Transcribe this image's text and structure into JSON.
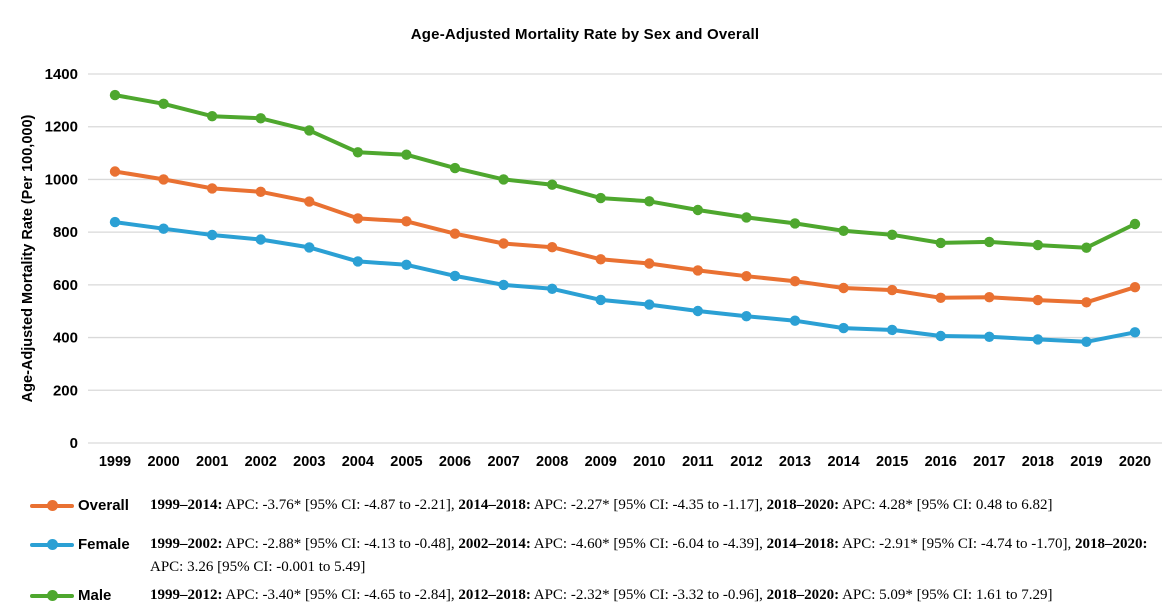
{
  "page": {
    "background": "#FFFFFF"
  },
  "chart_data": {
    "type": "line",
    "title": "Age-Adjusted Mortality Rate by Sex and Overall",
    "xlabel": "",
    "ylabel": "Age-Adjusted Mortality Rate (Per 100,000)",
    "ylim": [
      0,
      1400
    ],
    "yticks": [
      0,
      200,
      400,
      600,
      800,
      1000,
      1200,
      1400
    ],
    "grid": true,
    "gridline_color": "#D9D9D9",
    "legend_position": "bottom-left",
    "categories": [
      "1999",
      "2000",
      "2001",
      "2002",
      "2003",
      "2004",
      "2005",
      "2006",
      "2007",
      "2008",
      "2009",
      "2010",
      "2011",
      "2012",
      "2013",
      "2014",
      "2015",
      "2016",
      "2017",
      "2018",
      "2019",
      "2020"
    ],
    "series": [
      {
        "name": "Overall",
        "color": "#E97132",
        "values": [
          1030,
          1000,
          966,
          953,
          916,
          852,
          841,
          794,
          757,
          743,
          697,
          681,
          655,
          633,
          614,
          588,
          580,
          551,
          553,
          542,
          534,
          591
        ]
      },
      {
        "name": "Female",
        "color": "#2BA0D4",
        "values": [
          838,
          813,
          789,
          772,
          742,
          689,
          676,
          634,
          600,
          585,
          543,
          525,
          501,
          481,
          464,
          436,
          429,
          406,
          403,
          393,
          384,
          420
        ]
      },
      {
        "name": "Male",
        "color": "#4EA72E",
        "values": [
          1320,
          1287,
          1240,
          1232,
          1186,
          1103,
          1094,
          1043,
          1000,
          980,
          929,
          917,
          884,
          856,
          833,
          805,
          790,
          759,
          763,
          751,
          741,
          831
        ]
      }
    ]
  },
  "legend": {
    "rows": [
      {
        "label": "Overall",
        "series": "Overall",
        "segments": [
          {
            "b": "1999–2014:",
            "t": " APC: -3.76* [95% CI: -4.87 to -2.21], "
          },
          {
            "b": "2014–2018:",
            "t": " APC: -2.27* [95% CI: -4.35 to -1.17], "
          },
          {
            "b": "2018–2020:",
            "t": " APC: 4.28* [95% CI: 0.48 to 6.82]"
          }
        ]
      },
      {
        "label": "Female",
        "series": "Female",
        "segments": [
          {
            "b": "1999–2002:",
            "t": " APC: -2.88* [95% CI: -4.13 to -0.48], "
          },
          {
            "b": "2002–2014:",
            "t": " APC: -4.60* [95% CI: -6.04 to -4.39], "
          },
          {
            "b": "2014–2018:",
            "t": " APC: -2.91* [95% CI: -4.74 to -1.70], "
          },
          {
            "b": "2018–2020:",
            "t": " APC: 3.26 [95% CI: -0.001 to 5.49]"
          }
        ]
      },
      {
        "label": "Male",
        "series": "Male",
        "segments": [
          {
            "b": "1999–2012:",
            "t": " APC: -3.40* [95% CI: -4.65 to -2.84], "
          },
          {
            "b": "2012–2018:",
            "t": " APC: -2.32* [95% CI: -3.32 to -0.96], "
          },
          {
            "b": "2018–2020:",
            "t": " APC: 5.09* [95% CI: 1.61 to 7.29]"
          }
        ]
      }
    ]
  }
}
